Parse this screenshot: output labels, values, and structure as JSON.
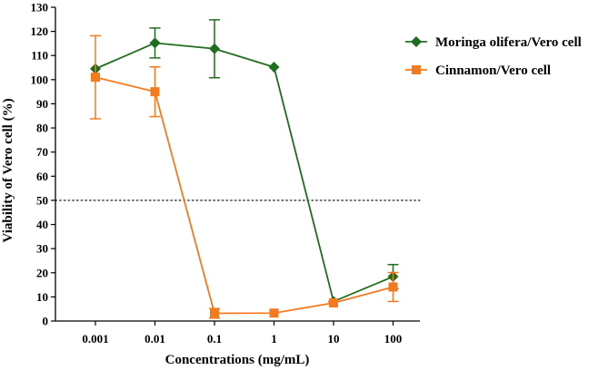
{
  "chart_data": {
    "type": "line",
    "title": "",
    "xlabel": "Concentrations (mg/mL)",
    "ylabel": "Viability of Vero cell (%)",
    "x_categories": [
      "0.001",
      "0.01",
      "0.1",
      "1",
      "10",
      "100"
    ],
    "y_ticks": [
      "0",
      "10",
      "20",
      "30",
      "40",
      "50",
      "60",
      "70",
      "80",
      "90",
      "100",
      "110",
      "120",
      "130"
    ],
    "ylim": [
      0,
      130
    ],
    "reference_line": {
      "y": 50,
      "style": "dotted"
    },
    "legend_position": "top-right",
    "series": [
      {
        "name": "Moringa olifera/Vero cell",
        "color": "#1f6e1f",
        "marker": "diamond",
        "values": [
          104.5,
          115.2,
          112.8,
          105.2,
          8.1,
          18.4
        ],
        "errors": [
          0,
          6.2,
          12.0,
          0,
          0,
          5.0
        ]
      },
      {
        "name": "Cinnamon/Vero cell",
        "color": "#f47a20",
        "marker": "square",
        "values": [
          101.0,
          95.0,
          3.2,
          3.3,
          7.5,
          14.1
        ],
        "errors": [
          17.2,
          10.3,
          2.0,
          0,
          0,
          6.0
        ]
      }
    ]
  }
}
